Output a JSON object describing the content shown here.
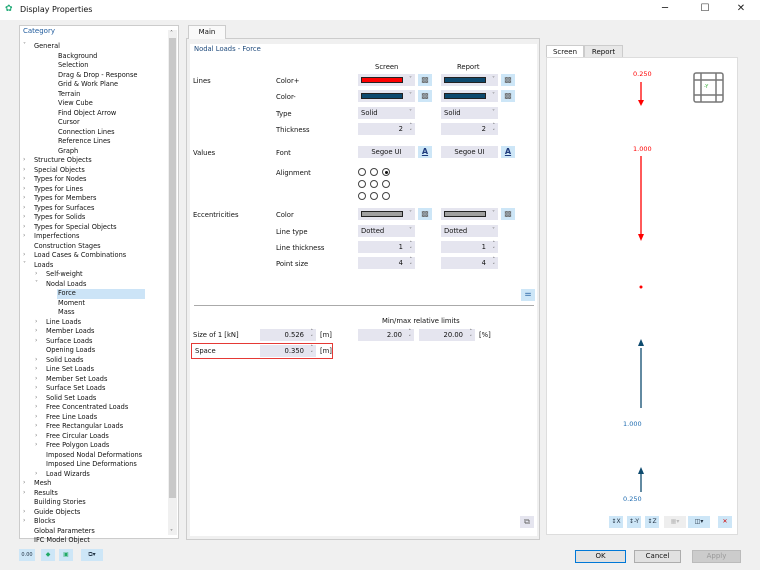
{
  "window": {
    "title": "Display Properties",
    "minimize": "─",
    "maximize": "☐",
    "close": "✕"
  },
  "tree": {
    "header": "Category",
    "items": [
      {
        "label": "General",
        "level": 0,
        "arrow": "open"
      },
      {
        "label": "Background",
        "level": 2
      },
      {
        "label": "Selection",
        "level": 2
      },
      {
        "label": "Drag & Drop - Response",
        "level": 2
      },
      {
        "label": "Grid & Work Plane",
        "level": 2
      },
      {
        "label": "Terrain",
        "level": 2
      },
      {
        "label": "View Cube",
        "level": 2
      },
      {
        "label": "Find Object Arrow",
        "level": 2
      },
      {
        "label": "Cursor",
        "level": 2
      },
      {
        "label": "Connection Lines",
        "level": 2
      },
      {
        "label": "Reference Lines",
        "level": 2
      },
      {
        "label": "Graph",
        "level": 2
      },
      {
        "label": "Structure Objects",
        "level": 0,
        "arrow": "closed"
      },
      {
        "label": "Special Objects",
        "level": 0,
        "arrow": "closed"
      },
      {
        "label": "Types for Nodes",
        "level": 0,
        "arrow": "closed"
      },
      {
        "label": "Types for Lines",
        "level": 0,
        "arrow": "closed"
      },
      {
        "label": "Types for Members",
        "level": 0,
        "arrow": "closed"
      },
      {
        "label": "Types for Surfaces",
        "level": 0,
        "arrow": "closed"
      },
      {
        "label": "Types for Solids",
        "level": 0,
        "arrow": "closed"
      },
      {
        "label": "Types for Special Objects",
        "level": 0,
        "arrow": "closed"
      },
      {
        "label": "Imperfections",
        "level": 0,
        "arrow": "closed"
      },
      {
        "label": "Construction Stages",
        "level": 0
      },
      {
        "label": "Load Cases & Combinations",
        "level": 0,
        "arrow": "closed"
      },
      {
        "label": "Loads",
        "level": 0,
        "arrow": "open"
      },
      {
        "label": "Self-weight",
        "level": 1,
        "arrow": "closed"
      },
      {
        "label": "Nodal Loads",
        "level": 1,
        "arrow": "open"
      },
      {
        "label": "Force",
        "level": 2,
        "selected": true
      },
      {
        "label": "Moment",
        "level": 2
      },
      {
        "label": "Mass",
        "level": 2
      },
      {
        "label": "Line Loads",
        "level": 1,
        "arrow": "closed"
      },
      {
        "label": "Member Loads",
        "level": 1,
        "arrow": "closed"
      },
      {
        "label": "Surface Loads",
        "level": 1,
        "arrow": "closed"
      },
      {
        "label": "Opening Loads",
        "level": 1
      },
      {
        "label": "Solid Loads",
        "level": 1,
        "arrow": "closed"
      },
      {
        "label": "Line Set Loads",
        "level": 1,
        "arrow": "closed"
      },
      {
        "label": "Member Set Loads",
        "level": 1,
        "arrow": "closed"
      },
      {
        "label": "Surface Set Loads",
        "level": 1,
        "arrow": "closed"
      },
      {
        "label": "Solid Set Loads",
        "level": 1,
        "arrow": "closed"
      },
      {
        "label": "Free Concentrated Loads",
        "level": 1,
        "arrow": "closed"
      },
      {
        "label": "Free Line Loads",
        "level": 1,
        "arrow": "closed"
      },
      {
        "label": "Free Rectangular Loads",
        "level": 1,
        "arrow": "closed"
      },
      {
        "label": "Free Circular Loads",
        "level": 1,
        "arrow": "closed"
      },
      {
        "label": "Free Polygon Loads",
        "level": 1,
        "arrow": "closed"
      },
      {
        "label": "Imposed Nodal Deformations",
        "level": 1
      },
      {
        "label": "Imposed Line Deformations",
        "level": 1
      },
      {
        "label": "Load Wizards",
        "level": 1,
        "arrow": "closed"
      },
      {
        "label": "Mesh",
        "level": 0,
        "arrow": "closed"
      },
      {
        "label": "Results",
        "level": 0,
        "arrow": "closed"
      },
      {
        "label": "Building Stories",
        "level": 0
      },
      {
        "label": "Guide Objects",
        "level": 0,
        "arrow": "closed"
      },
      {
        "label": "Blocks",
        "level": 0,
        "arrow": "closed"
      },
      {
        "label": "Global Parameters",
        "level": 0
      },
      {
        "label": "IFC Model Object",
        "level": 0
      }
    ]
  },
  "main": {
    "tab": "Main",
    "section_title": "Nodal Loads - Force",
    "col_screen": "Screen",
    "col_report": "Report",
    "groups": {
      "lines": "Lines",
      "values": "Values",
      "eccentricities": "Eccentricities"
    },
    "rows": {
      "color_plus": {
        "label": "Color+",
        "screen_color": "#ff0000",
        "report_color": "#0d4a6e"
      },
      "color_minus": {
        "label": "Color-",
        "screen_color": "#0d4a6e",
        "report_color": "#0d4a6e"
      },
      "type": {
        "label": "Type",
        "screen": "Solid",
        "report": "Solid"
      },
      "thickness": {
        "label": "Thickness",
        "screen": "2",
        "report": "2"
      },
      "font": {
        "label": "Font",
        "screen": "Segoe UI",
        "report": "Segoe UI"
      },
      "alignment": {
        "label": "Alignment",
        "selected": "top-right"
      },
      "ecc_color": {
        "label": "Color",
        "screen_color": "#a0a0a0",
        "report_color": "#a0a0a0"
      },
      "line_type": {
        "label": "Line type",
        "screen": "Dotted",
        "report": "Dotted"
      },
      "line_thickness": {
        "label": "Line thickness",
        "screen": "1",
        "report": "1"
      },
      "point_size": {
        "label": "Point size",
        "screen": "4",
        "report": "4"
      }
    },
    "limits_title": "Min/max relative limits",
    "size": {
      "label": "Size of 1 [kN]",
      "value": "0.526",
      "unit": "[m]",
      "min": "2.00",
      "max": "20.00",
      "limits_unit": "[%]"
    },
    "space": {
      "label": "Space",
      "value": "0.350",
      "unit": "[m]"
    }
  },
  "preview": {
    "tabs": [
      "Screen",
      "Report"
    ],
    "active_tab": "Screen",
    "labels": {
      "top_small": "0.250",
      "top_large": "1.000",
      "bottom_large": "1.000",
      "bottom_small": "0.250"
    },
    "view_cube_label": "-Y",
    "colors": {
      "positive": "#ff0000",
      "negative": "#0d4a6e"
    },
    "toolbar": {
      "x": "X",
      "y": "-Y",
      "z": "Z"
    }
  },
  "buttons": {
    "ok": "OK",
    "cancel": "Cancel",
    "apply": "Apply"
  },
  "bottom_icons": {
    "units": "0.00"
  }
}
